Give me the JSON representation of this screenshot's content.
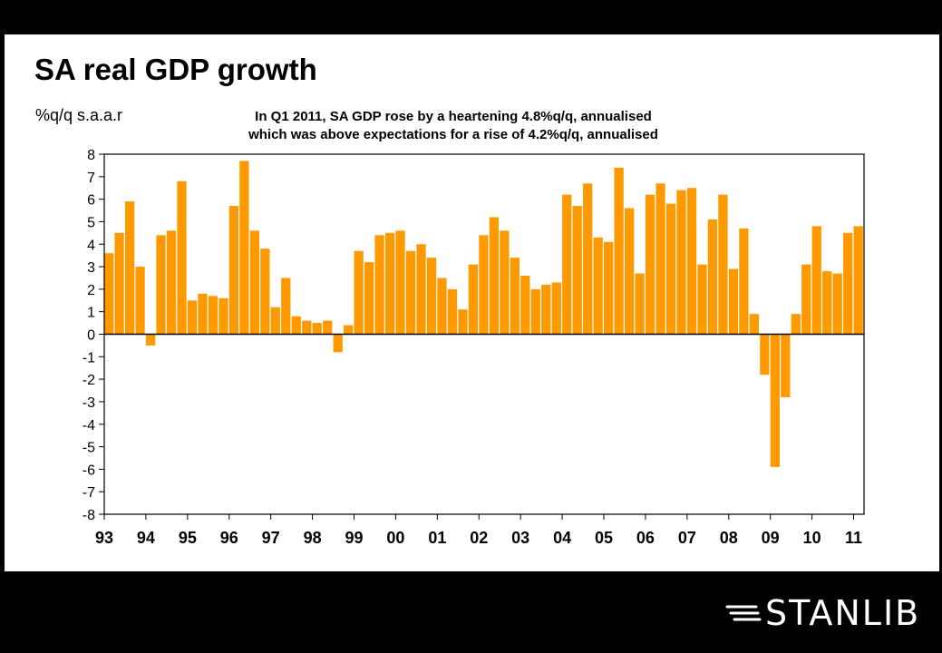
{
  "title": "SA real GDP growth",
  "units": "%q/q s.a.a.r",
  "annotation": {
    "line1": "In Q1 2011, SA GDP rose by a heartening 4.8%q/q, annualised",
    "line2": "which was above expectations for a rise of 4.2%q/q, annualised"
  },
  "brand": {
    "name": "STANLIB"
  },
  "chart_data": {
    "type": "bar",
    "bar_color": "#FF9900",
    "ylim": [
      -8,
      8
    ],
    "yticks": [
      8,
      7,
      6,
      5,
      4,
      3,
      2,
      1,
      0,
      -1,
      -2,
      -3,
      -4,
      -5,
      -6,
      -7,
      -8
    ],
    "grid": false,
    "legend": "none",
    "xtick_labels": [
      "93",
      "94",
      "95",
      "96",
      "97",
      "98",
      "99",
      "00",
      "01",
      "02",
      "03",
      "04",
      "05",
      "06",
      "07",
      "08",
      "09",
      "10",
      "11"
    ],
    "first_quarter": "1993 Q1",
    "values": [
      3.6,
      4.5,
      5.9,
      3.0,
      -0.5,
      4.4,
      4.6,
      6.8,
      1.5,
      1.8,
      1.7,
      1.6,
      5.7,
      7.7,
      4.6,
      3.8,
      1.2,
      2.5,
      0.8,
      0.6,
      0.5,
      0.6,
      -0.8,
      0.4,
      3.7,
      3.2,
      4.4,
      4.5,
      4.6,
      3.7,
      4.0,
      3.4,
      2.5,
      2.0,
      1.1,
      3.1,
      4.4,
      5.2,
      4.6,
      3.4,
      2.6,
      2.0,
      2.2,
      2.3,
      6.2,
      5.7,
      6.7,
      4.3,
      4.1,
      7.4,
      5.6,
      2.7,
      6.2,
      6.7,
      5.8,
      6.4,
      6.5,
      3.1,
      5.1,
      6.2,
      2.9,
      4.7,
      0.9,
      -1.8,
      -5.9,
      -2.8,
      0.9,
      3.1,
      4.8,
      2.8,
      2.7,
      4.5,
      4.8
    ]
  }
}
